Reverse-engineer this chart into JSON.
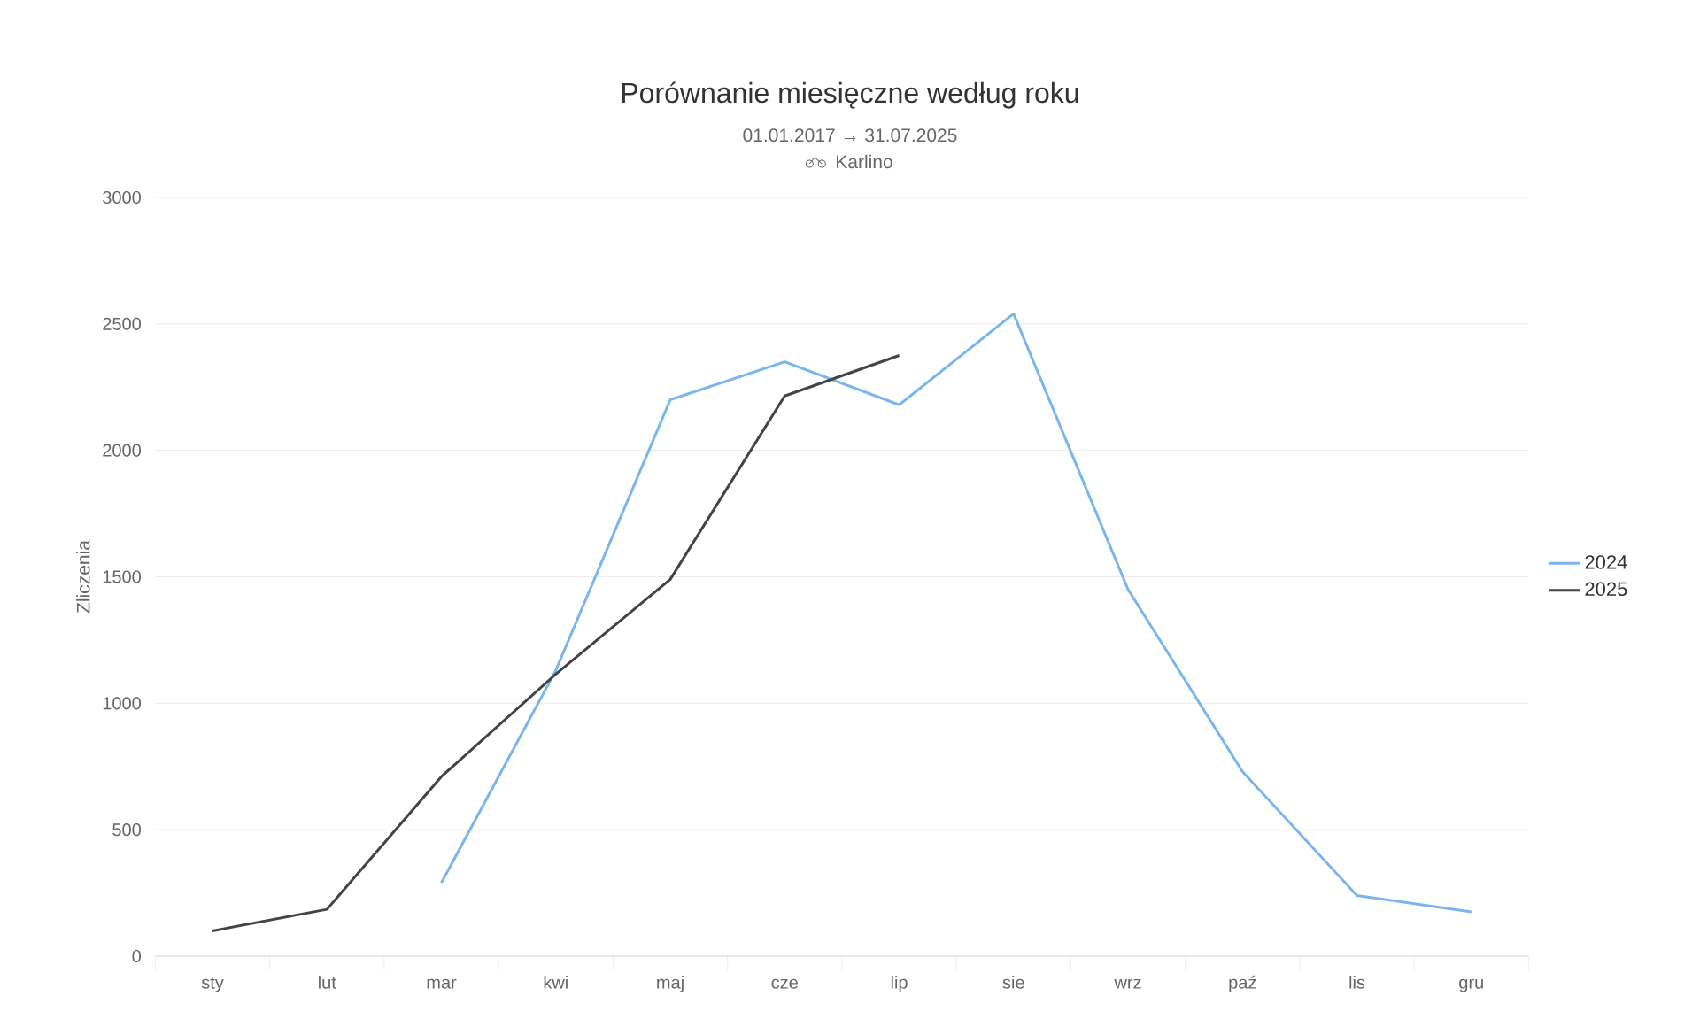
{
  "chart_data": {
    "type": "line",
    "title": "Porównanie miesięczne według roku",
    "subtitle": "01.01.2017 → 31.07.2025",
    "annotations": [
      "Karlino"
    ],
    "ylabel": "Zliczenia",
    "categories": [
      "sty",
      "lut",
      "mar",
      "kwi",
      "maj",
      "cze",
      "lip",
      "sie",
      "wrz",
      "paź",
      "lis",
      "gru"
    ],
    "series": [
      {
        "name": "2024",
        "color": "#7cb5ec",
        "values": [
          null,
          null,
          290,
          1130,
          2200,
          2350,
          2180,
          2540,
          1450,
          730,
          240,
          175
        ]
      },
      {
        "name": "2025",
        "color": "#434348",
        "values": [
          100,
          185,
          710,
          1115,
          1490,
          2215,
          2375,
          null,
          null,
          null,
          null,
          null
        ]
      }
    ],
    "ylim": [
      0,
      3000
    ],
    "yticks": [
      0,
      500,
      1000,
      1500,
      2000,
      2500,
      3000
    ],
    "grid": "y",
    "legend": "right",
    "marker": "none",
    "line_style": "solid"
  }
}
